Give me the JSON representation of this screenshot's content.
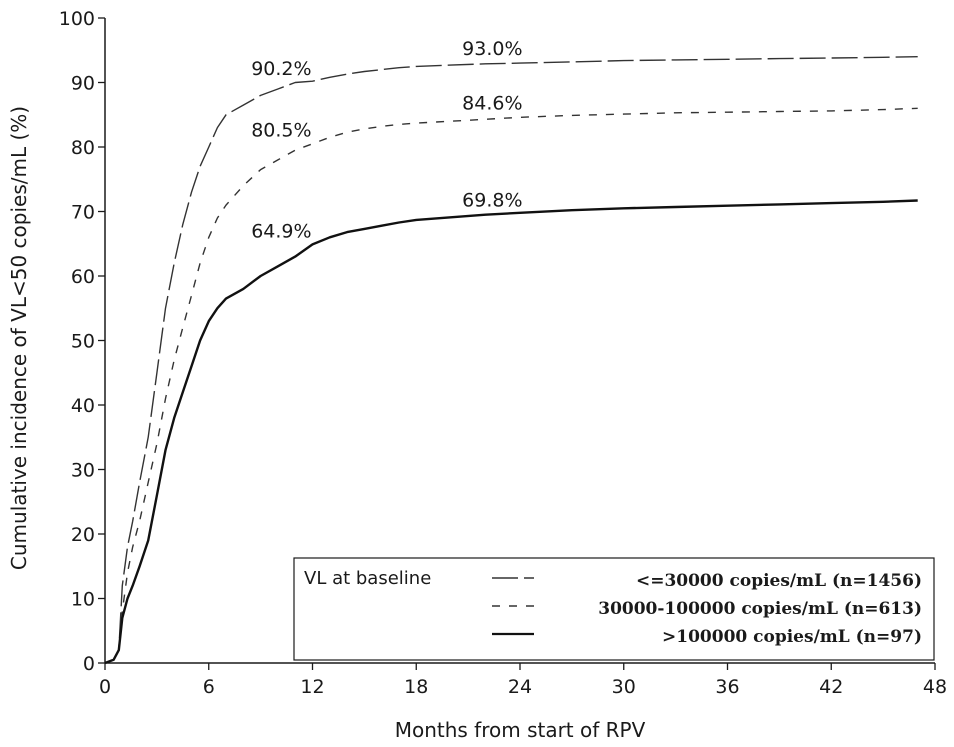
{
  "chart_data": {
    "type": "line",
    "title": "",
    "xlabel": "Months from start of RPV",
    "ylabel": "Cumulative incidence of VL<50 copies/mL (%)",
    "xlim": [
      0,
      48
    ],
    "ylim": [
      0,
      100
    ],
    "xticks": [
      0,
      6,
      12,
      18,
      24,
      30,
      36,
      42,
      48
    ],
    "yticks": [
      0,
      10,
      20,
      30,
      40,
      50,
      60,
      70,
      80,
      90,
      100
    ],
    "grid": false,
    "legend": {
      "title": "VL at baseline",
      "placement": "bottom-right",
      "entries": [
        "<=30000 copies/mL (n=1456)",
        "30000-100000 copies/mL (n=613)",
        ">100000 copies/mL (n=97)"
      ]
    },
    "series": [
      {
        "name": "<=30000 copies/mL (n=1456)",
        "style": "long-dash",
        "points": [
          [
            0,
            0
          ],
          [
            0.5,
            0.5
          ],
          [
            0.8,
            2
          ],
          [
            1,
            12
          ],
          [
            1.3,
            18
          ],
          [
            1.6,
            22
          ],
          [
            2,
            28
          ],
          [
            2.5,
            35
          ],
          [
            3,
            45
          ],
          [
            3.5,
            55
          ],
          [
            4,
            62
          ],
          [
            4.5,
            68
          ],
          [
            5,
            73
          ],
          [
            5.5,
            77
          ],
          [
            6,
            80
          ],
          [
            6.5,
            83
          ],
          [
            7,
            85
          ],
          [
            8,
            86.5
          ],
          [
            9,
            88
          ],
          [
            10,
            89
          ],
          [
            11,
            90
          ],
          [
            12,
            90.2
          ],
          [
            13,
            90.8
          ],
          [
            14,
            91.3
          ],
          [
            15,
            91.7
          ],
          [
            16,
            92
          ],
          [
            17,
            92.3
          ],
          [
            18,
            92.5
          ],
          [
            20,
            92.7
          ],
          [
            22,
            92.9
          ],
          [
            24,
            93
          ],
          [
            27,
            93.2
          ],
          [
            30,
            93.4
          ],
          [
            33,
            93.5
          ],
          [
            36,
            93.6
          ],
          [
            39,
            93.7
          ],
          [
            42,
            93.8
          ],
          [
            45,
            93.9
          ],
          [
            47,
            94
          ]
        ]
      },
      {
        "name": "30000-100000 copies/mL (n=613)",
        "style": "short-dash",
        "points": [
          [
            0,
            0
          ],
          [
            0.5,
            0.5
          ],
          [
            0.8,
            2
          ],
          [
            1,
            8
          ],
          [
            1.3,
            14
          ],
          [
            1.6,
            18
          ],
          [
            2,
            22
          ],
          [
            2.5,
            28
          ],
          [
            3,
            34
          ],
          [
            3.5,
            41
          ],
          [
            4,
            47
          ],
          [
            4.5,
            52
          ],
          [
            5,
            57
          ],
          [
            5.5,
            62
          ],
          [
            6,
            66
          ],
          [
            6.5,
            69
          ],
          [
            7,
            71
          ],
          [
            8,
            74
          ],
          [
            9,
            76.5
          ],
          [
            10,
            78
          ],
          [
            11,
            79.5
          ],
          [
            12,
            80.5
          ],
          [
            13,
            81.5
          ],
          [
            14,
            82.3
          ],
          [
            15,
            82.8
          ],
          [
            16,
            83.2
          ],
          [
            17,
            83.5
          ],
          [
            18,
            83.7
          ],
          [
            20,
            84
          ],
          [
            22,
            84.3
          ],
          [
            24,
            84.6
          ],
          [
            27,
            84.9
          ],
          [
            30,
            85.1
          ],
          [
            33,
            85.3
          ],
          [
            36,
            85.4
          ],
          [
            39,
            85.5
          ],
          [
            42,
            85.6
          ],
          [
            45,
            85.8
          ],
          [
            47,
            86
          ]
        ]
      },
      {
        "name": ">100000 copies/mL (n=97)",
        "style": "solid",
        "points": [
          [
            0,
            0
          ],
          [
            0.5,
            0.5
          ],
          [
            0.8,
            2
          ],
          [
            1,
            7
          ],
          [
            1.3,
            10
          ],
          [
            1.6,
            12
          ],
          [
            2,
            15
          ],
          [
            2.5,
            19
          ],
          [
            3,
            26
          ],
          [
            3.5,
            33
          ],
          [
            4,
            38
          ],
          [
            4.5,
            42
          ],
          [
            5,
            46
          ],
          [
            5.5,
            50
          ],
          [
            6,
            53
          ],
          [
            6.5,
            55
          ],
          [
            7,
            56.5
          ],
          [
            8,
            58
          ],
          [
            9,
            60
          ],
          [
            10,
            61.5
          ],
          [
            11,
            63
          ],
          [
            12,
            64.9
          ],
          [
            13,
            66
          ],
          [
            14,
            66.8
          ],
          [
            15,
            67.3
          ],
          [
            16,
            67.8
          ],
          [
            17,
            68.3
          ],
          [
            18,
            68.7
          ],
          [
            20,
            69.1
          ],
          [
            22,
            69.5
          ],
          [
            24,
            69.8
          ],
          [
            27,
            70.2
          ],
          [
            30,
            70.5
          ],
          [
            33,
            70.7
          ],
          [
            36,
            70.9
          ],
          [
            39,
            71.1
          ],
          [
            42,
            71.3
          ],
          [
            45,
            71.5
          ],
          [
            47,
            71.7
          ]
        ]
      }
    ],
    "annotations": [
      {
        "text": "90.2%",
        "x": 10.2,
        "y": 91.2
      },
      {
        "text": "93.0%",
        "x": 22.4,
        "y": 94.3
      },
      {
        "text": "80.5%",
        "x": 10.2,
        "y": 81.6
      },
      {
        "text": "84.6%",
        "x": 22.4,
        "y": 85.8
      },
      {
        "text": "64.9%",
        "x": 10.2,
        "y": 66.0
      },
      {
        "text": "69.8%",
        "x": 22.4,
        "y": 70.8
      }
    ]
  }
}
